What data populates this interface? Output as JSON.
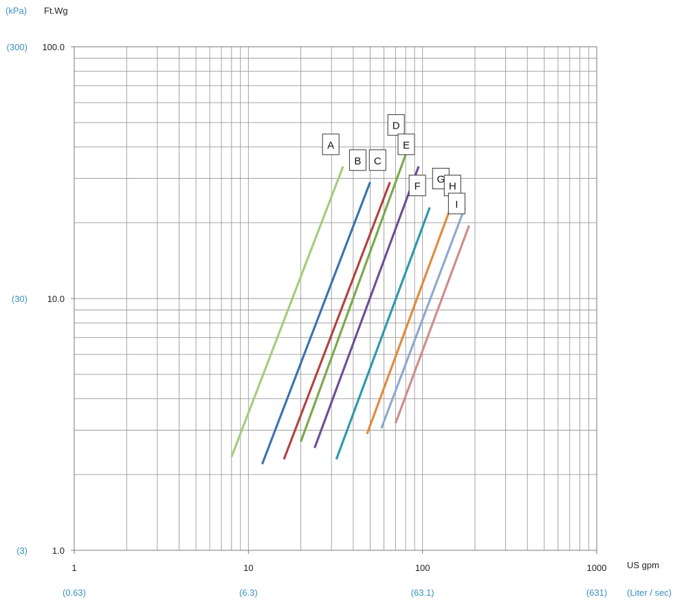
{
  "chart_data": {
    "type": "line",
    "scale": "log-log",
    "title": "",
    "y_units": {
      "secondary": "(kPa)",
      "primary": "Ft.Wg"
    },
    "x_units": {
      "primary": "US gpm",
      "secondary": "(Liter / sec)"
    },
    "xlim": [
      1,
      1000
    ],
    "ylim": [
      1,
      100
    ],
    "grid": true,
    "x_ticks": [
      {
        "value": 1,
        "label": "1",
        "label2": "(0.63)"
      },
      {
        "value": 10,
        "label": "10",
        "label2": "(6.3)"
      },
      {
        "value": 100,
        "label": "100",
        "label2": "(63.1)"
      },
      {
        "value": 1000,
        "label": "1000",
        "label2": "(631)"
      }
    ],
    "y_ticks": [
      {
        "value": 100,
        "label": "100.0",
        "label2": "(300)"
      },
      {
        "value": 10,
        "label": "10.0",
        "label2": "(30)"
      },
      {
        "value": 1,
        "label": "1.0",
        "label2": "(3)"
      }
    ],
    "series": [
      {
        "name": "A",
        "color": "#a4cc7e",
        "points": [
          [
            8,
            2.35
          ],
          [
            35,
            33.5
          ]
        ]
      },
      {
        "name": "B",
        "color": "#3c73ab",
        "points": [
          [
            12,
            2.2
          ],
          [
            50,
            29
          ]
        ]
      },
      {
        "name": "C",
        "color": "#b24341",
        "points": [
          [
            16,
            2.3
          ],
          [
            65,
            29
          ]
        ]
      },
      {
        "name": "D",
        "color": "#7aa84a",
        "points": [
          [
            20,
            2.7
          ],
          [
            83,
            40
          ]
        ]
      },
      {
        "name": "E",
        "color": "#6d4f93",
        "points": [
          [
            24,
            2.55
          ],
          [
            95,
            33.5
          ]
        ]
      },
      {
        "name": "F",
        "color": "#2d98ac",
        "points": [
          [
            32,
            2.3
          ],
          [
            110,
            23
          ]
        ]
      },
      {
        "name": "G",
        "color": "#e08a3c",
        "points": [
          [
            48,
            2.9
          ],
          [
            150,
            24.5
          ]
        ]
      },
      {
        "name": "H",
        "color": "#8caace",
        "points": [
          [
            58,
            3.05
          ],
          [
            175,
            23
          ]
        ]
      },
      {
        "name": "I",
        "color": "#d08b8b",
        "points": [
          [
            70,
            3.2
          ],
          [
            185,
            19.5
          ]
        ]
      }
    ]
  }
}
